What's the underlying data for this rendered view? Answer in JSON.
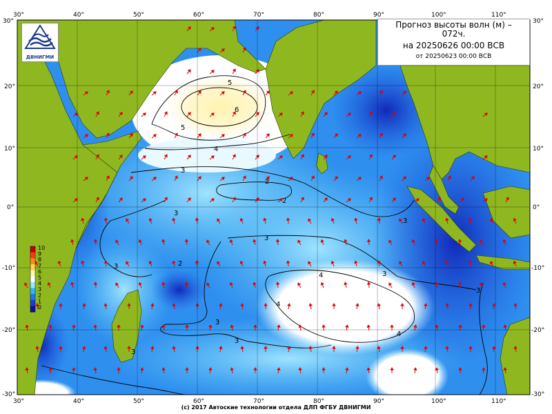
{
  "title": {
    "line1": "Прогноз высоты волн (м) –",
    "line2": "072ч.",
    "line3": "на 20250626 00:00 ВСВ",
    "line4": "от 20250623 00:00 ВСВ"
  },
  "logo": {
    "text": "ДВНИГМИ"
  },
  "footer": "(с) 2017 Автоские технологии отдела ДЛП ФГБУ ДВНИГМИ",
  "axes": {
    "lon_top": [
      "30°",
      "40°",
      "50°",
      "60°",
      "70°",
      "80°",
      "90°",
      "100°",
      "110°"
    ],
    "lon_bottom": [
      "30°",
      "40°",
      "50°",
      "60°",
      "70°",
      "80°",
      "90°",
      "100°",
      "110°"
    ],
    "lat_left": [
      "30°",
      "20°",
      "10°",
      "0°",
      "-10°",
      "-20°",
      "-30°"
    ],
    "lat_right": [
      "30°",
      "20°",
      "10°",
      "0°",
      "-10°",
      "-20°",
      "-30°"
    ]
  },
  "colorbar": {
    "labels": [
      "10",
      "9",
      "8",
      "7",
      "6",
      "5",
      "4",
      "3",
      "2",
      "1",
      "0"
    ],
    "colors": [
      "#1010a0",
      "#1a3fd0",
      "#1e78f0",
      "#31b7f8",
      "#9fe6ff",
      "#ffffff",
      "#fff6b0",
      "#ffd24a",
      "#ff8c1a",
      "#ff3a10",
      "#c00000"
    ]
  },
  "contour_labels": [
    "5",
    "6",
    "5",
    "4",
    "3",
    "2",
    "2",
    "3",
    "3",
    "3",
    "3",
    "3",
    "4",
    "4",
    "4",
    "3",
    "3",
    "3",
    "3",
    "2"
  ],
  "colors": {
    "land": "#8fb820",
    "arrow": "#e00000",
    "contour": "#000000"
  }
}
